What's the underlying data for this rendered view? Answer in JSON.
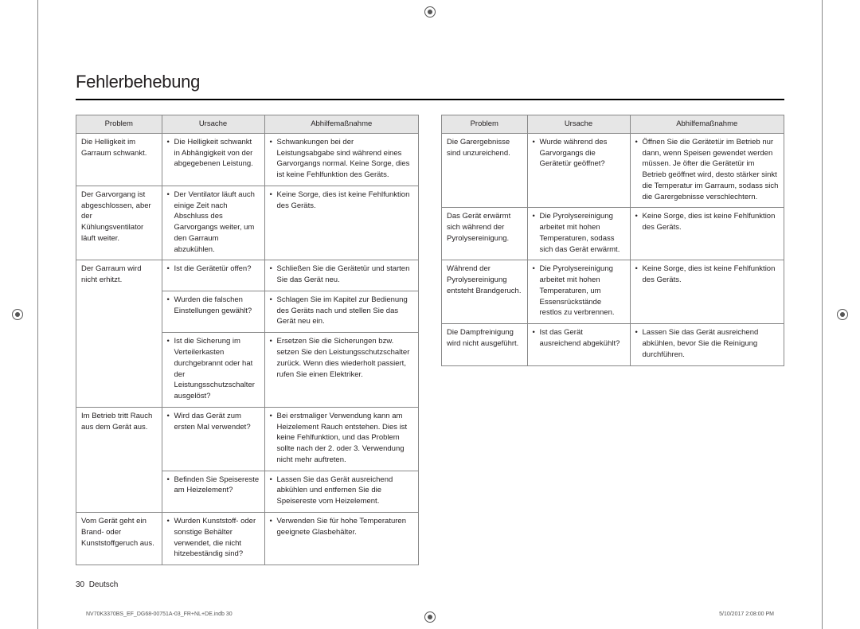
{
  "title": "Fehlerbehebung",
  "headers": {
    "problem": "Problem",
    "cause": "Ursache",
    "remedy": "Abhilfemaßnahme"
  },
  "footer": {
    "page": "30",
    "lang": "Deutsch"
  },
  "imprint": {
    "left": "NV70K3370BS_EF_DG68-00751A-03_FR+NL+DE.indb   30",
    "right": "5/10/2017   2:08:00 PM"
  },
  "left_rows": [
    {
      "problem": "Die Helligkeit im Garraum schwankt.",
      "cause": "Die Helligkeit schwankt in Abhängigkeit von der abgegebenen Leistung.",
      "remedy": "Schwankungen bei der Leistungsabgabe sind während eines Garvorgangs normal. Keine Sorge, dies ist keine Fehlfunktion des Geräts."
    },
    {
      "problem": "Der Garvorgang ist abgeschlossen, aber der Kühlungsventilator läuft weiter.",
      "cause": "Der Ventilator läuft auch einige Zeit nach Abschluss des Garvorgangs weiter, um den Garraum abzukühlen.",
      "remedy": "Keine Sorge, dies ist keine Fehlfunktion des Geräts."
    },
    {
      "problem": "Der Garraum wird nicht erhitzt.",
      "rowspan": 3,
      "cause": "Ist die Gerätetür offen?",
      "remedy": "Schließen Sie die Gerätetür und starten Sie das Gerät neu."
    },
    {
      "cause": "Wurden die falschen Einstellungen gewählt?",
      "remedy": "Schlagen Sie im Kapitel zur Bedienung des Geräts nach und stellen Sie das Gerät neu ein."
    },
    {
      "cause": "Ist die Sicherung im Verteilerkasten durchgebrannt oder hat der Leistungsschutzschalter ausgelöst?",
      "remedy": "Ersetzen Sie die Sicherungen bzw. setzen Sie den Leistungsschutzschalter zurück. Wenn dies wiederholt passiert, rufen Sie einen Elektriker."
    },
    {
      "problem": "Im Betrieb tritt Rauch aus dem Gerät aus.",
      "rowspan": 2,
      "cause": "Wird das Gerät zum ersten Mal verwendet?",
      "remedy": "Bei erstmaliger Verwendung kann am Heizelement Rauch entstehen. Dies ist keine Fehlfunktion, und das Problem sollte nach der 2. oder 3. Verwendung nicht mehr auftreten."
    },
    {
      "cause": "Befinden Sie Speisereste am Heizelement?",
      "remedy": "Lassen Sie das Gerät ausreichend abkühlen und entfernen Sie die Speisereste vom Heizelement."
    },
    {
      "problem": "Vom Gerät geht ein Brand- oder Kunststoffgeruch aus.",
      "cause": "Wurden Kunststoff- oder sonstige Behälter verwendet, die nicht hitzebeständig sind?",
      "remedy": "Verwenden Sie für hohe Temperaturen geeignete Glasbehälter."
    }
  ],
  "right_rows": [
    {
      "problem": "Die Garergebnisse sind unzureichend.",
      "cause": "Wurde während des Garvorgangs die Gerätetür geöffnet?",
      "remedy": "Öffnen Sie die Gerätetür im Betrieb nur dann, wenn Speisen gewendet werden müssen. Je öfter die Gerätetür im Betrieb geöffnet wird, desto stärker sinkt die Temperatur im Garraum, sodass sich die Garergebnisse verschlechtern."
    },
    {
      "problem": "Das Gerät erwärmt sich während der Pyrolysereinigung.",
      "cause": "Die Pyrolysereinigung arbeitet mit hohen Temperaturen, sodass sich das Gerät erwärmt.",
      "remedy": "Keine Sorge, dies ist keine Fehlfunktion des Geräts."
    },
    {
      "problem": "Während der Pyrolysereinigung entsteht Brandgeruch.",
      "cause": "Die Pyrolysereinigung arbeitet mit hohen Temperaturen, um Essensrückstände restlos zu verbrennen.",
      "remedy": "Keine Sorge, dies ist keine Fehlfunktion des Geräts."
    },
    {
      "problem": "Die Dampfreinigung wird nicht ausgeführt.",
      "cause": "Ist das Gerät ausreichend abgekühlt?",
      "remedy": "Lassen Sie das Gerät ausreichend abkühlen, bevor Sie die Reinigung durchführen."
    }
  ]
}
